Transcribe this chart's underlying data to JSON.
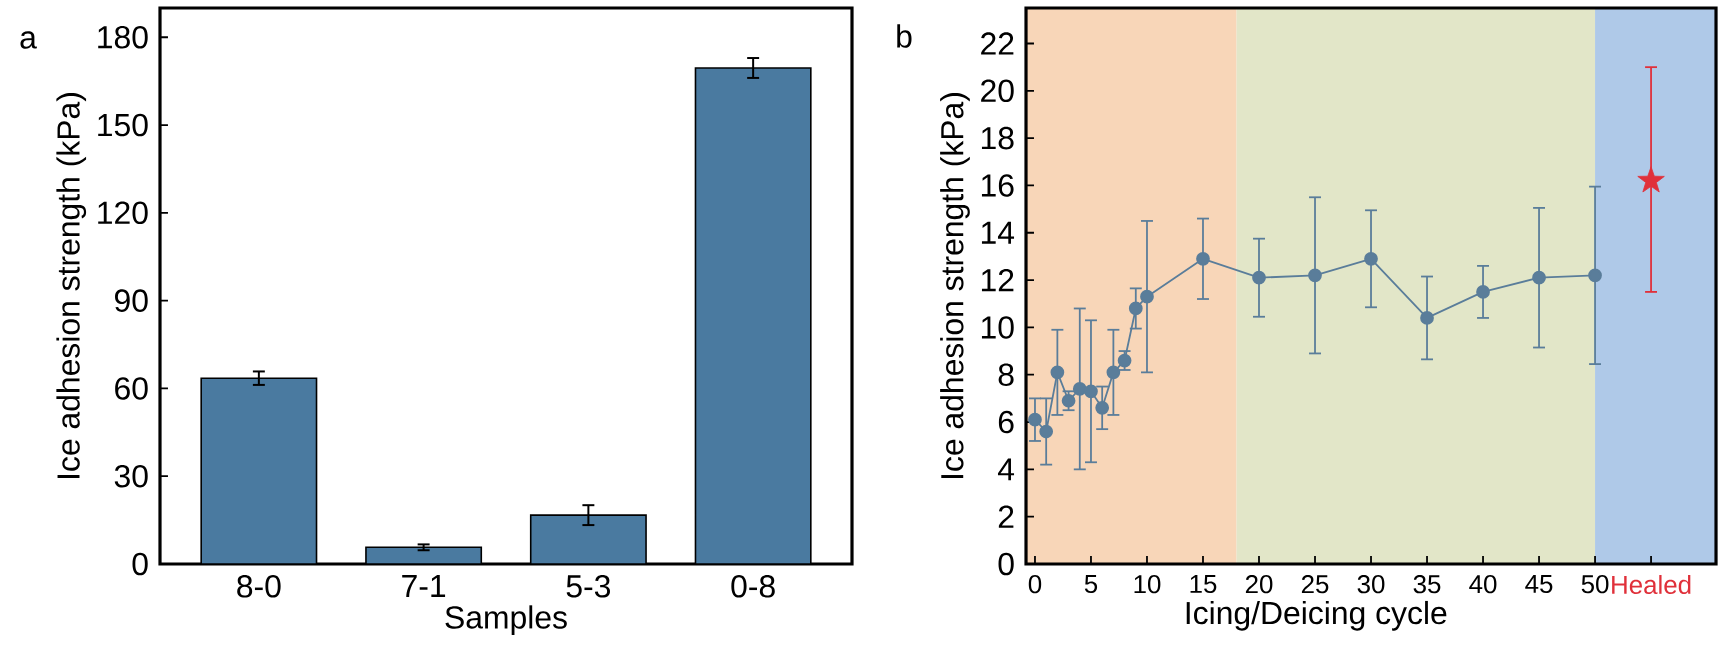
{
  "chart_data": [
    {
      "type": "bar",
      "xlabel": "Samples",
      "ylabel": "Ice adhesion strength (kPa)",
      "annotations": [
        "a"
      ],
      "categories": [
        "8-0",
        "7-1",
        "5-3",
        "0-8"
      ],
      "values": [
        63.5,
        5.7,
        16.7,
        169.5
      ],
      "errors": [
        2.3,
        1.0,
        3.4,
        3.4
      ],
      "color": "#4a7aa0",
      "ylim": [
        0,
        190
      ],
      "yticks": [
        0,
        30,
        60,
        90,
        120,
        150,
        180
      ]
    },
    {
      "type": "line",
      "xlabel": "Icing/Deicing cycle",
      "ylabel": "Ice adhesion strength (kPa)",
      "annotations": [
        "b"
      ],
      "series": [
        {
          "type": "line",
          "color": "#5a7d9a",
          "marker": "circle",
          "line_style": "solid",
          "x": [
            0,
            1,
            2,
            3,
            4,
            5,
            6,
            7,
            8,
            9,
            10,
            15,
            20,
            25,
            30,
            35,
            40,
            45,
            50
          ],
          "values": [
            6.1,
            5.6,
            8.1,
            6.9,
            7.4,
            7.3,
            6.6,
            8.1,
            8.6,
            10.8,
            11.3,
            12.9,
            12.1,
            12.2,
            12.9,
            10.4,
            11.5,
            12.1,
            12.2
          ],
          "errors": [
            0.9,
            1.4,
            1.8,
            0.4,
            3.4,
            3.0,
            0.9,
            1.8,
            0.4,
            0.85,
            3.2,
            1.7,
            1.65,
            3.3,
            2.05,
            1.75,
            1.1,
            2.95,
            3.75
          ]
        },
        {
          "type": "scatter",
          "color": "#e0303a",
          "marker": "star",
          "x": [
            55
          ],
          "values": [
            16.2
          ],
          "errors": [
            [
              11.5,
              21.0
            ]
          ]
        }
      ],
      "bands": [
        {
          "axis": "x",
          "from": -0.8,
          "to": 18,
          "color": "#f8d6b8"
        },
        {
          "axis": "x",
          "from": 18,
          "to": 50,
          "color": "#e2e6c8"
        },
        {
          "axis": "x",
          "from": 50,
          "to": 60.8,
          "color": "#afc9e8"
        }
      ],
      "xlim": [
        -0.8,
        60.8
      ],
      "xticks": [
        0,
        5,
        10,
        15,
        20,
        25,
        30,
        35,
        40,
        45,
        50,
        {
          "value": 55,
          "label": "Healed"
        }
      ],
      "ylim": [
        0,
        23.5
      ],
      "yticks": [
        0,
        2,
        4,
        6,
        8,
        10,
        12,
        14,
        16,
        18,
        20,
        22
      ]
    }
  ]
}
